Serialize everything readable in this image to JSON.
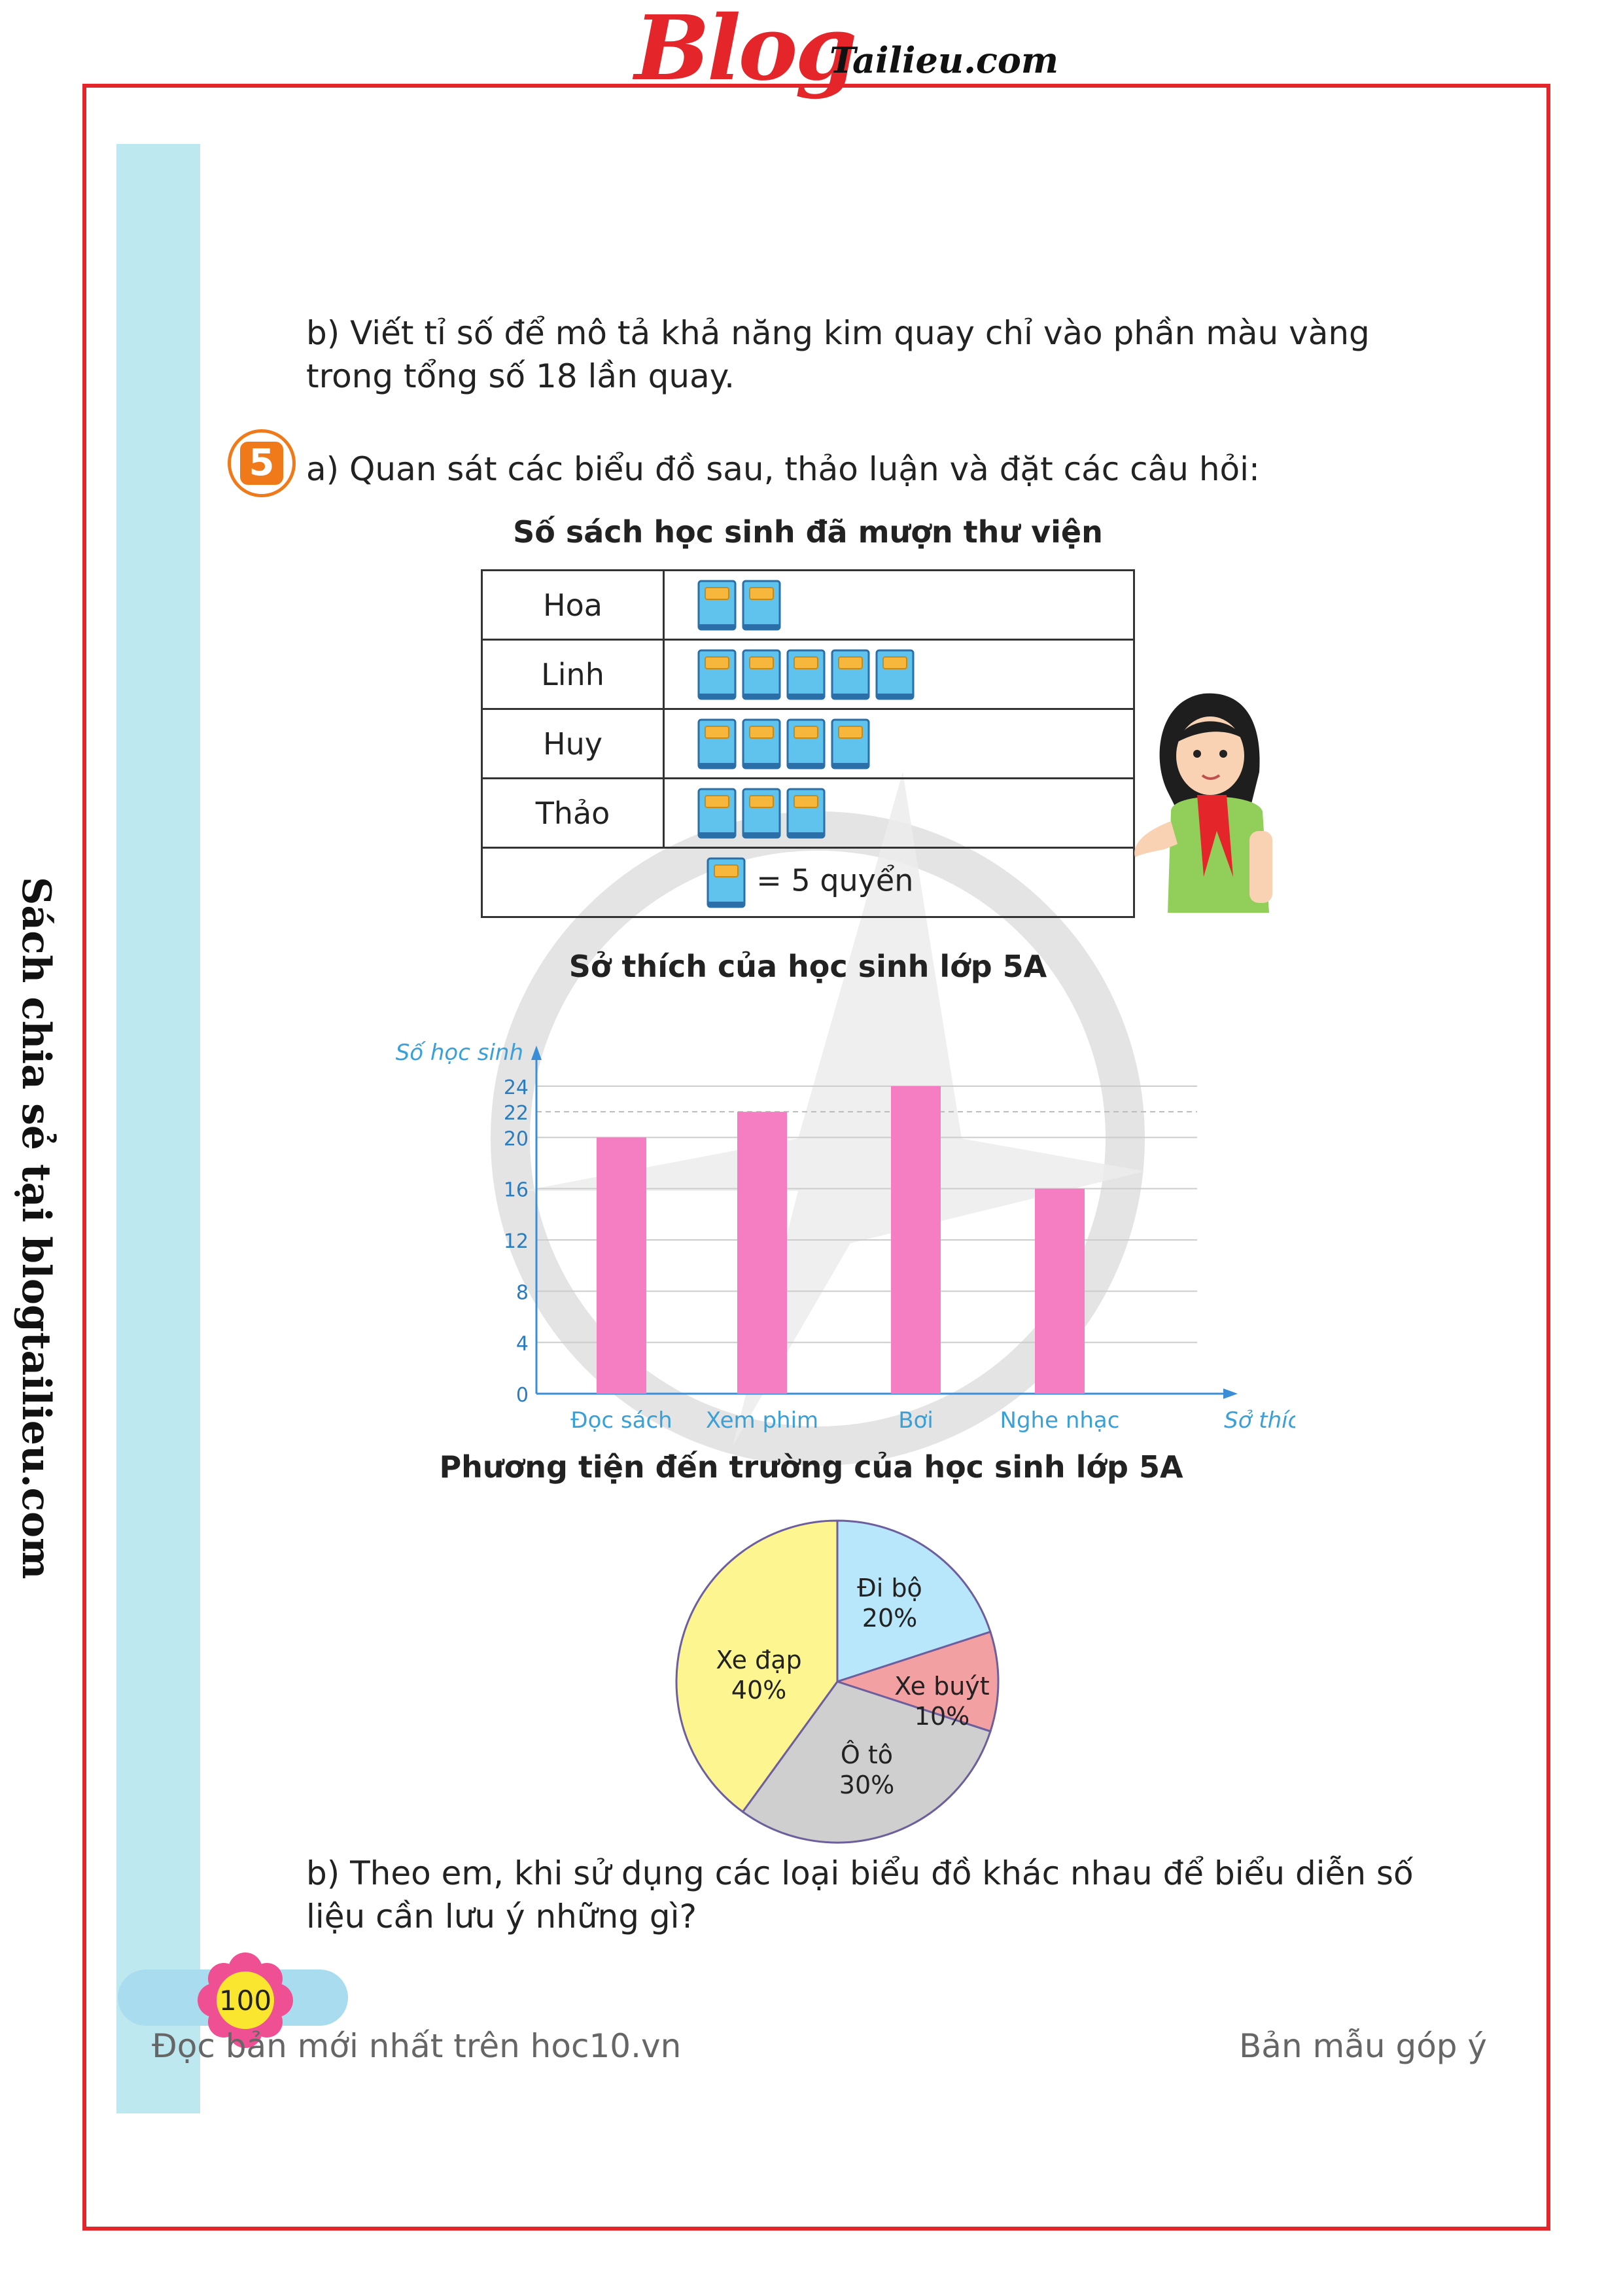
{
  "header": {
    "logo_blog": "Blog",
    "logo_site": "Tailieu.com"
  },
  "sidebar": {
    "text": "Sách chia sẻ tại blogtailieu.com"
  },
  "part_b_top": {
    "line1": "b) Viết tỉ số để mô tả khả năng kim quay chỉ vào phần màu vàng",
    "line2": "trong tổng số 18 lần quay."
  },
  "exercise5": {
    "number": "5",
    "intro": "a) Quan sát các biểu đồ sau, thảo luận và đặt các câu hỏi:"
  },
  "pictograph": {
    "title": "Số sách học sinh đã mượn thư viện",
    "rows": [
      {
        "name": "Hoa",
        "icons": 2
      },
      {
        "name": "Linh",
        "icons": 5
      },
      {
        "name": "Huy",
        "icons": 4
      },
      {
        "name": "Thảo",
        "icons": 3
      }
    ],
    "legend": "= 5 quyển",
    "icon": "book-icon",
    "icon_color": "#5fc3ee"
  },
  "chart_data": [
    {
      "type": "bar",
      "title": "Sở thích của học sinh lớp 5A",
      "ylabel": "Số học sinh",
      "xlabel": "Sở thích",
      "categories": [
        "Đọc sách",
        "Xem phim",
        "Bơi",
        "Nghe nhạc"
      ],
      "values": [
        20,
        22,
        24,
        16
      ],
      "yticks": [
        0,
        4,
        8,
        12,
        16,
        20,
        22,
        24
      ],
      "ylim": [
        0,
        24
      ],
      "bar_color": "#f47ec1",
      "grid": true
    },
    {
      "type": "pie",
      "title": "Phương tiện đến trường của học sinh lớp 5A",
      "slices": [
        {
          "label": "Đi bộ",
          "value": 20,
          "pct": "20%",
          "color": "#b8e6fa"
        },
        {
          "label": "Xe buýt",
          "value": 10,
          "pct": "10%",
          "color": "#f3a0a3"
        },
        {
          "label": "Ô tô",
          "value": 30,
          "pct": "30%",
          "color": "#cfcfcf"
        },
        {
          "label": "Xe đạp",
          "value": 40,
          "pct": "40%",
          "color": "#fdf690"
        }
      ]
    }
  ],
  "part_b_bottom": {
    "line1": "b) Theo em, khi sử dụng các loại biểu đồ khác nhau để biểu diễn số",
    "line2": "liệu cần lưu ý những gì?"
  },
  "footer": {
    "page_number": "100",
    "left": "Đọc bản mới nhất trên hoc10.vn",
    "right": "Bản mẫu góp ý"
  }
}
